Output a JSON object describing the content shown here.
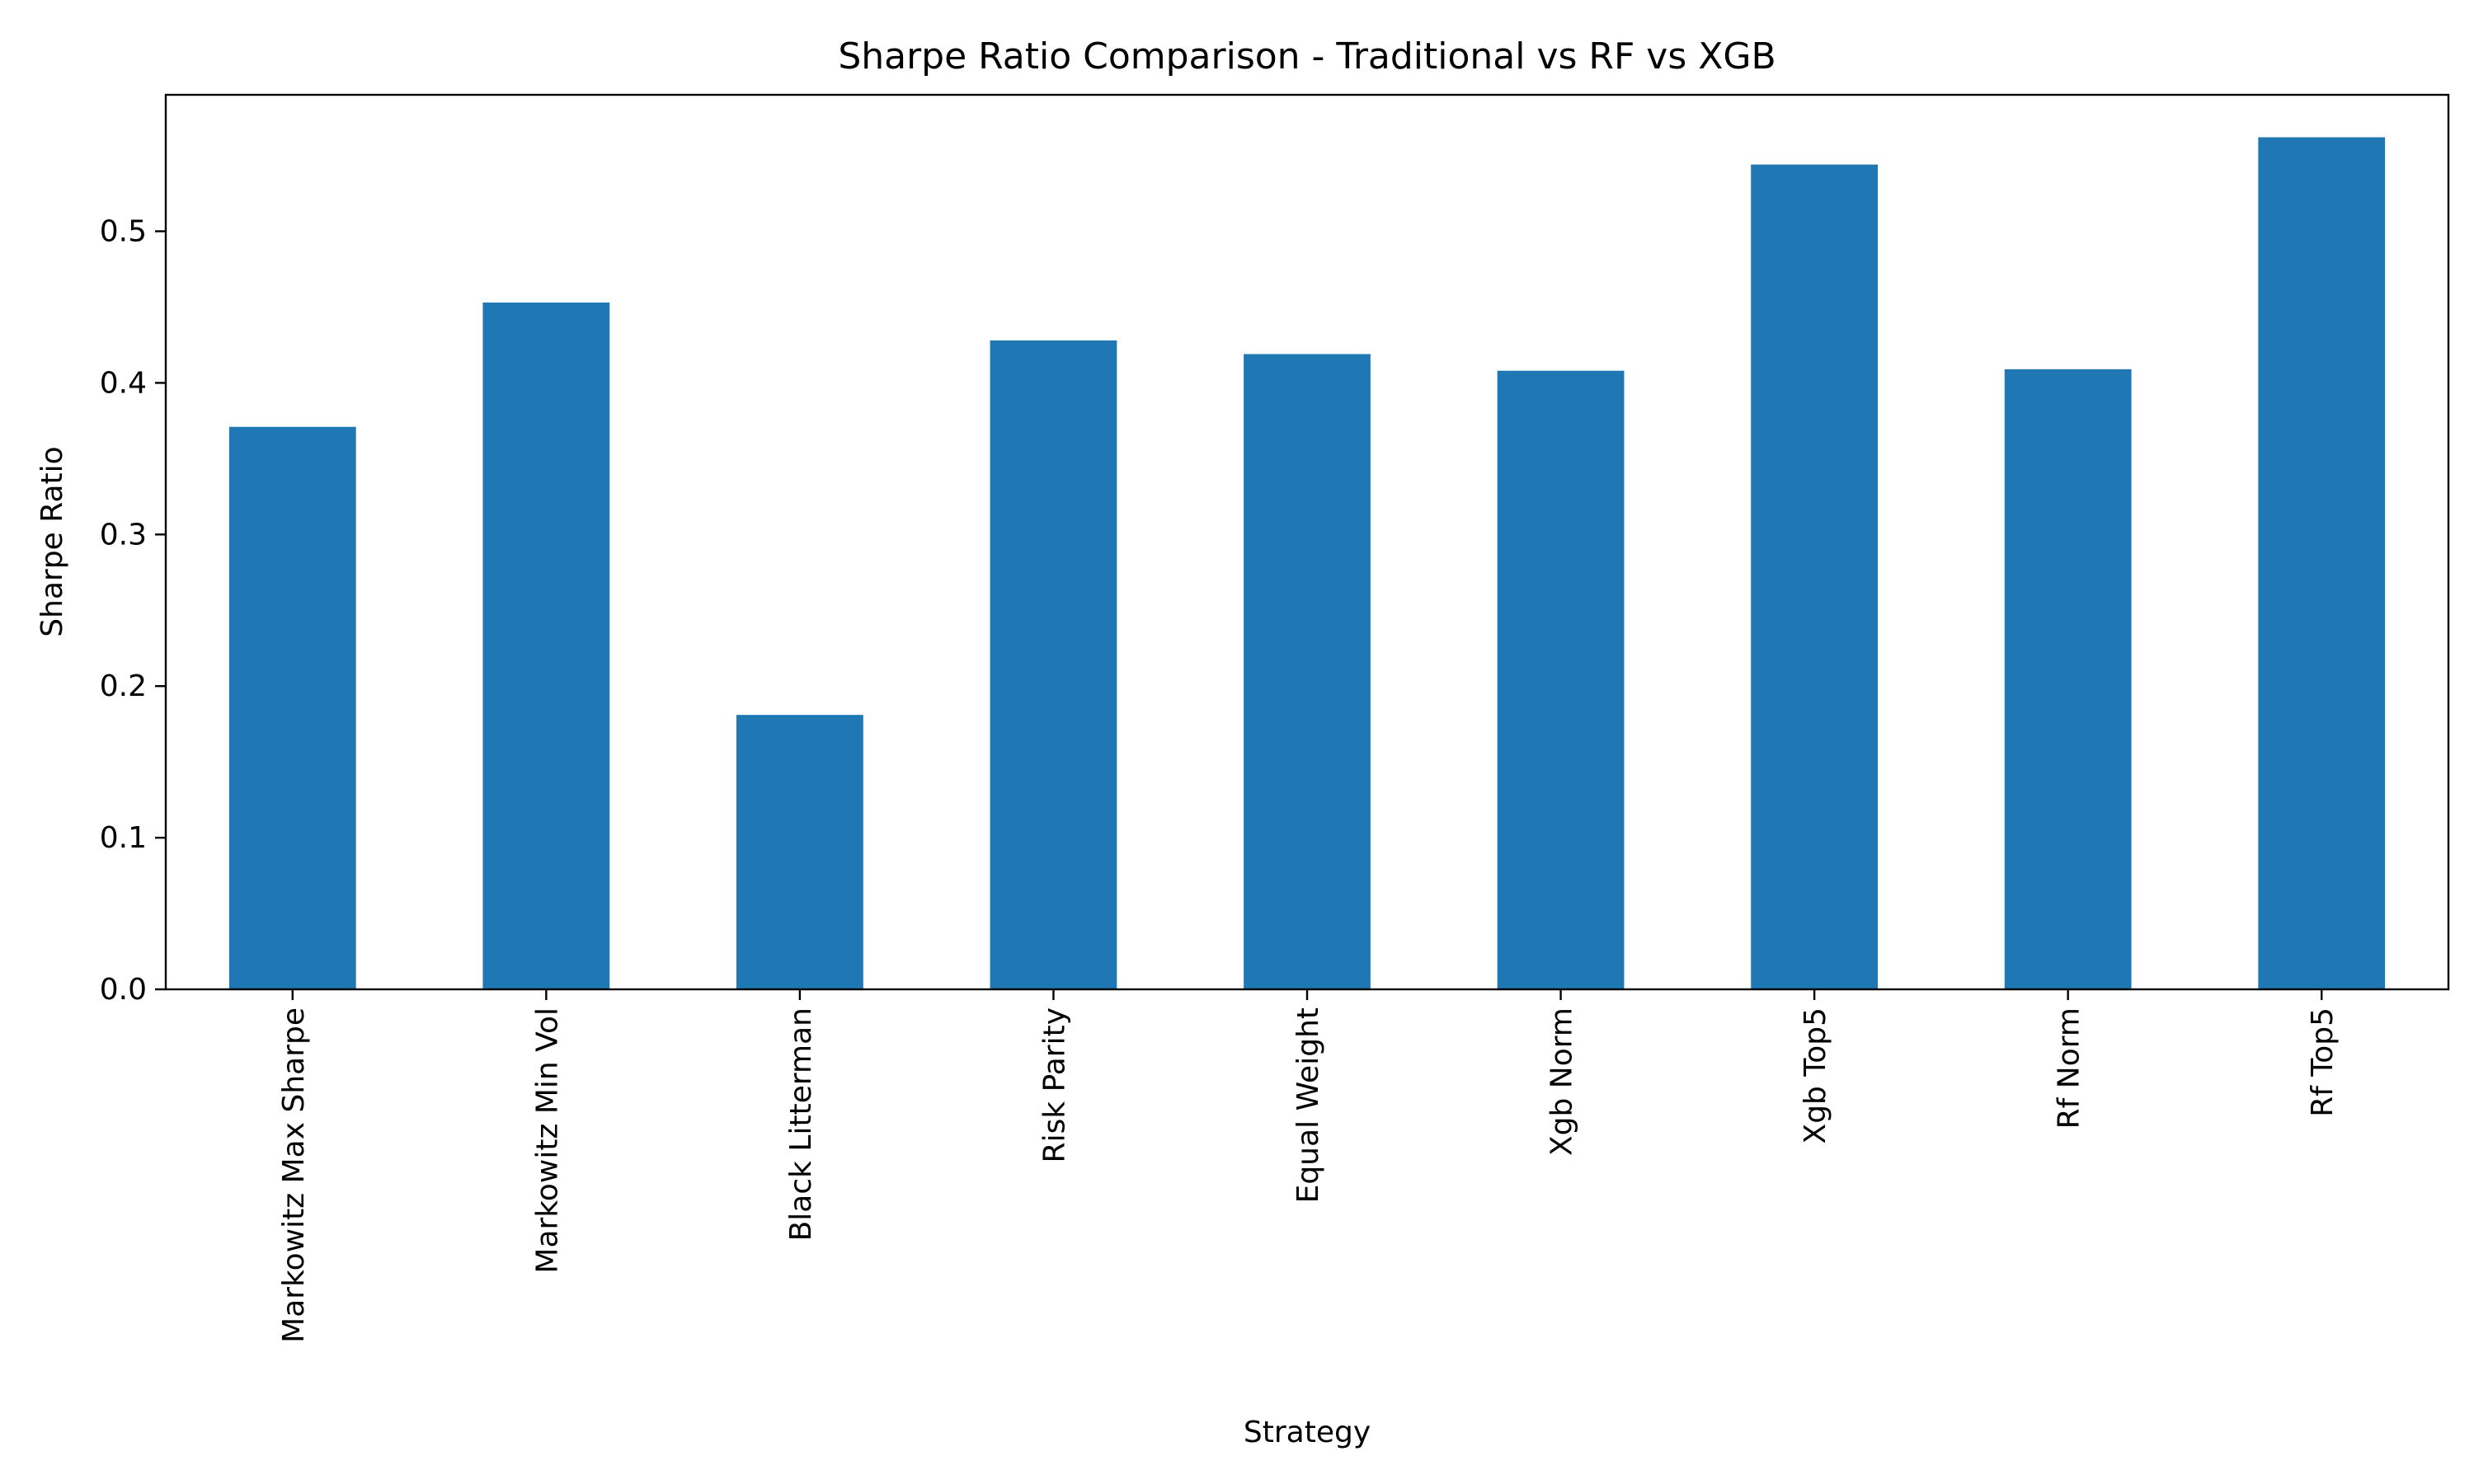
{
  "chart_data": {
    "type": "bar",
    "title": "Sharpe Ratio Comparison - Traditional vs RF vs XGB",
    "xlabel": "Strategy",
    "ylabel": "Sharpe Ratio",
    "categories": [
      "Markowitz Max Sharpe",
      "Markowitz Min Vol",
      "Black Litterman",
      "Risk Parity",
      "Equal Weight",
      "Xgb Norm",
      "Xgb Top5",
      "Rf Norm",
      "Rf Top5"
    ],
    "values": [
      0.371,
      0.453,
      0.181,
      0.428,
      0.419,
      0.408,
      0.544,
      0.409,
      0.562
    ],
    "ylim": [
      0,
      0.59
    ],
    "yticks": [
      "0.0",
      "0.1",
      "0.2",
      "0.3",
      "0.4",
      "0.5"
    ],
    "grid": false,
    "legend": "none",
    "bar_color": "#1f77b4"
  }
}
